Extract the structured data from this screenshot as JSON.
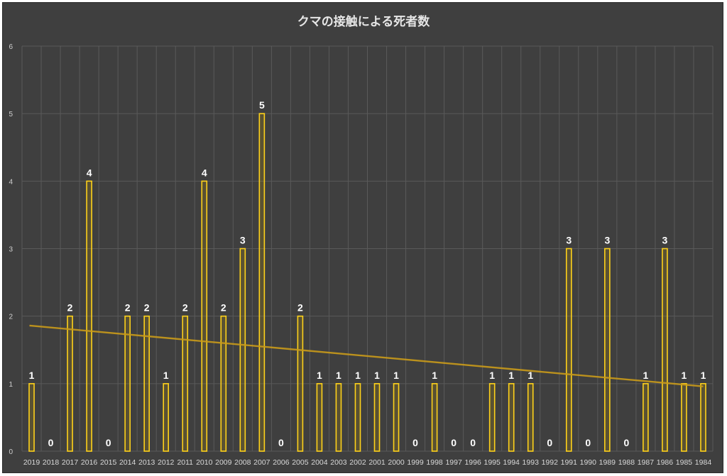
{
  "chart_data": {
    "type": "bar",
    "title": "クマの接触による死者数",
    "categories": [
      "2019",
      "2018",
      "2017",
      "2016",
      "2015",
      "2014",
      "2013",
      "2012",
      "2011",
      "2010",
      "2009",
      "2008",
      "2007",
      "2006",
      "2005",
      "2004",
      "2003",
      "2002",
      "2001",
      "2000",
      "1999",
      "1998",
      "1997",
      "1996",
      "1995",
      "1994",
      "1993",
      "1992",
      "1991",
      "1990",
      "1989",
      "1988",
      "1987",
      "1986",
      "1985",
      "1984"
    ],
    "values": [
      1,
      0,
      2,
      4,
      0,
      2,
      2,
      1,
      2,
      4,
      2,
      3,
      5,
      0,
      2,
      1,
      1,
      1,
      1,
      1,
      0,
      1,
      0,
      0,
      1,
      1,
      1,
      0,
      3,
      0,
      3,
      0,
      1,
      3,
      1,
      1
    ],
    "ylim": [
      0,
      6
    ],
    "yticks": [
      0,
      1,
      2,
      3,
      4,
      5,
      6
    ],
    "grid": true,
    "data_labels": true,
    "trendline": {
      "type": "linear",
      "start": 1.86,
      "end": 0.96
    },
    "colors": {
      "background": "#3f3f3f",
      "bar": "#ffd21a",
      "trend": "#c99a1a"
    }
  }
}
